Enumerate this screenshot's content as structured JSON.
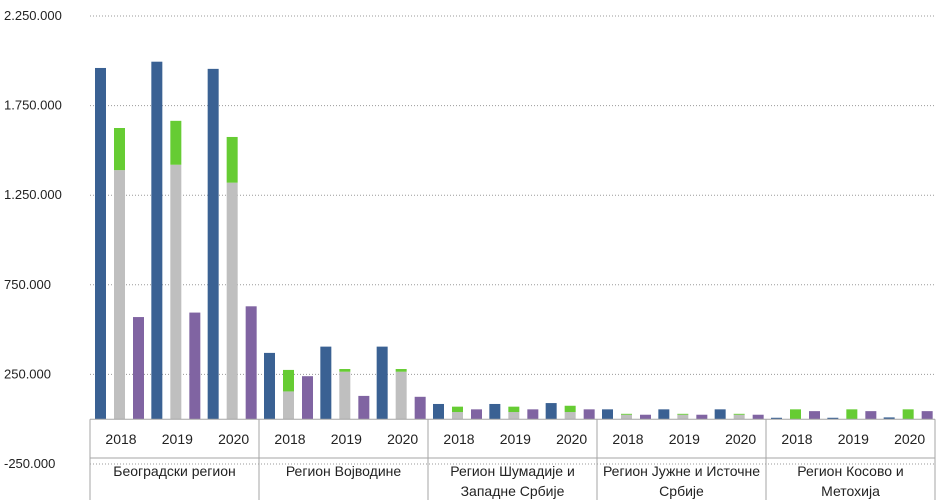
{
  "chart_data": {
    "type": "bar",
    "title": "",
    "ylim": [
      -250000,
      2250000
    ],
    "y_ticks": [
      "2.250.000",
      "1.750.000",
      "1.250.000",
      "750.000",
      "250.000",
      "-250.000"
    ],
    "y_tick_values": [
      2250000,
      1750000,
      1250000,
      750000,
      250000,
      -250000
    ],
    "grid": true,
    "regions": [
      {
        "name": "Београдски регион",
        "lines": [
          "Београдски регион"
        ]
      },
      {
        "name": "Регион Војводине",
        "lines": [
          "Регион Војводине"
        ]
      },
      {
        "name": "Регион Шумадије и Западне Србије",
        "lines": [
          "Регион Шумадије и",
          "Западне Србије"
        ]
      },
      {
        "name": "Регион Јужне и Источне Србије",
        "lines": [
          "Регион Јужне и Источне",
          "Србије"
        ]
      },
      {
        "name": "Регион Косово и Метохија",
        "lines": [
          "Регион Косово и",
          "Метохија"
        ]
      }
    ],
    "years": [
      "2018",
      "2019",
      "2020"
    ],
    "colors": {
      "blue": "#3a6193",
      "gray": "#bfbfbf",
      "green": "#66cc33",
      "purple": "#8064a2"
    },
    "data": [
      [
        {
          "blue": 1960000,
          "gray": 1390000,
          "green": 235000,
          "purple": 570000
        },
        {
          "blue": 1995000,
          "gray": 1420000,
          "green": 245000,
          "purple": 595000
        },
        {
          "blue": 1955000,
          "gray": 1320000,
          "green": 255000,
          "purple": 630000
        }
      ],
      [
        {
          "blue": 370000,
          "gray": 155000,
          "green": 120000,
          "purple": 240000
        },
        {
          "blue": 405000,
          "gray": 265000,
          "green": 15000,
          "purple": 130000
        },
        {
          "blue": 405000,
          "gray": 265000,
          "green": 15000,
          "purple": 125000
        }
      ],
      [
        {
          "blue": 85000,
          "gray": 40000,
          "green": 30000,
          "purple": 55000
        },
        {
          "blue": 85000,
          "gray": 40000,
          "green": 30000,
          "purple": 55000
        },
        {
          "blue": 90000,
          "gray": 40000,
          "green": 35000,
          "purple": 55000
        }
      ],
      [
        {
          "blue": 55000,
          "gray": 25000,
          "green": 5000,
          "purple": 25000
        },
        {
          "blue": 55000,
          "gray": 25000,
          "green": 5000,
          "purple": 25000
        },
        {
          "blue": 55000,
          "gray": 25000,
          "green": 5000,
          "purple": 25000
        }
      ],
      [
        {
          "blue": 8000,
          "gray": 0,
          "green": 55000,
          "purple": 45000
        },
        {
          "blue": 8000,
          "gray": 0,
          "green": 55000,
          "purple": 45000
        },
        {
          "blue": 10000,
          "gray": 0,
          "green": 55000,
          "purple": 45000
        }
      ]
    ]
  }
}
